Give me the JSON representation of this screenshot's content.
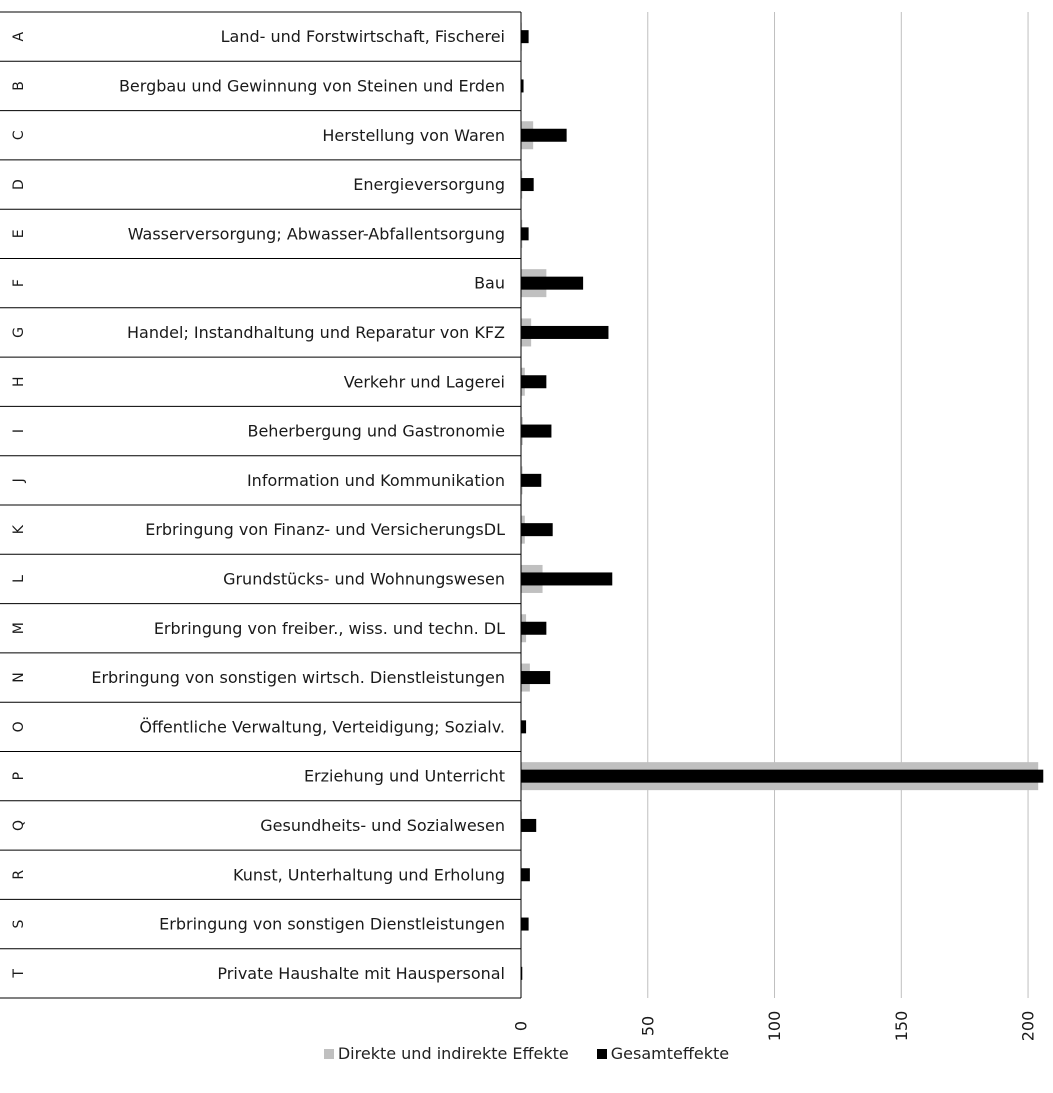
{
  "chart_data": {
    "type": "bar",
    "orientation": "horizontal",
    "categories": [
      {
        "code": "A",
        "label": "Land- und Forstwirtschaft, Fischerei"
      },
      {
        "code": "B",
        "label": "Bergbau und Gewinnung von Steinen und Erden"
      },
      {
        "code": "C",
        "label": "Herstellung von Waren"
      },
      {
        "code": "D",
        "label": "Energieversorgung"
      },
      {
        "code": "E",
        "label": "Wasserversorgung; Abwasser-Abfallentsorgung"
      },
      {
        "code": "F",
        "label": "Bau"
      },
      {
        "code": "G",
        "label": "Handel; Instandhaltung und Reparatur von KFZ"
      },
      {
        "code": "H",
        "label": "Verkehr und Lagerei"
      },
      {
        "code": "I",
        "label": "Beherbergung und Gastronomie"
      },
      {
        "code": "J",
        "label": "Information und Kommunikation"
      },
      {
        "code": "K",
        "label": "Erbringung von Finanz- und VersicherungsDL"
      },
      {
        "code": "L",
        "label": "Grundstücks- und Wohnungswesen"
      },
      {
        "code": "M",
        "label": "Erbringung von freiber., wiss. und techn. DL"
      },
      {
        "code": "N",
        "label": "Erbringung von sonstigen wirtsch. Dienstleistungen"
      },
      {
        "code": "O",
        "label": "Öffentliche Verwaltung, Verteidigung; Sozialv."
      },
      {
        "code": "P",
        "label": "Erziehung und Unterricht"
      },
      {
        "code": "Q",
        "label": "Gesundheits- und Sozialwesen"
      },
      {
        "code": "R",
        "label": "Kunst, Unterhaltung und Erholung"
      },
      {
        "code": "S",
        "label": "Erbringung von sonstigen Dienstleistungen"
      },
      {
        "code": "T",
        "label": "Private Haushalte mit Hauspersonal"
      }
    ],
    "series": [
      {
        "name": "Direkte und indirekte Effekte",
        "color": "#c0c0c0",
        "values": [
          0.3,
          0.1,
          4.8,
          0.5,
          0.5,
          10.0,
          4.0,
          1.5,
          0.7,
          0.6,
          1.5,
          8.5,
          2.0,
          3.5,
          0.2,
          204.0,
          0.3,
          0.2,
          0.2,
          0.1
        ]
      },
      {
        "name": "Gesamteffekte",
        "color": "#000000",
        "values": [
          3.0,
          1.0,
          18.0,
          5.0,
          3.0,
          24.5,
          34.5,
          10.0,
          12.0,
          8.0,
          12.5,
          36.0,
          10.0,
          11.5,
          2.0,
          206.0,
          6.0,
          3.5,
          3.0,
          0.5
        ]
      }
    ],
    "xlim": [
      0,
      206
    ],
    "xticks": [
      "0",
      "50",
      "100",
      "150",
      "200"
    ],
    "xtick_values": [
      0,
      50,
      100,
      150,
      200
    ],
    "grid": true,
    "legend_position": "bottom"
  }
}
